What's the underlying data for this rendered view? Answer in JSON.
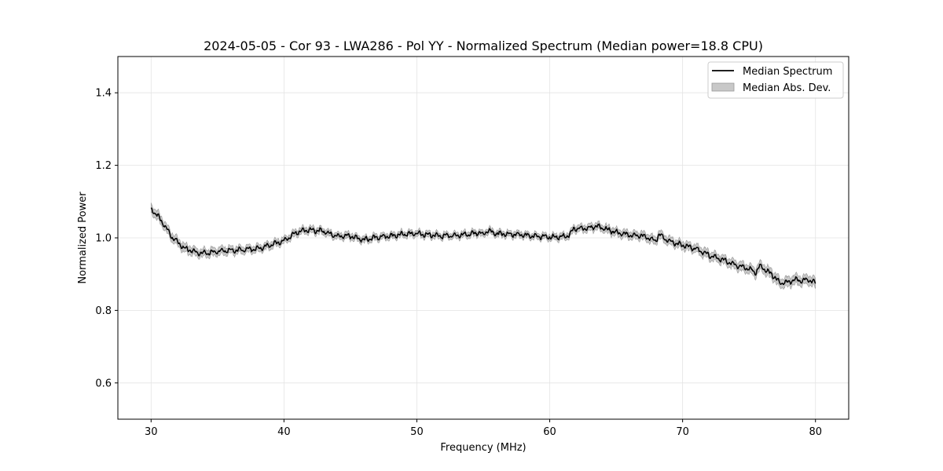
{
  "chart_data": {
    "type": "line",
    "title": "2024-05-05 - Cor 93 - LWA286 - Pol YY - Normalized Spectrum (Median power=18.8 CPU)",
    "xlabel": "Frequency (MHz)",
    "ylabel": "Normalized Power",
    "xlim": [
      27.5,
      82.5
    ],
    "ylim": [
      0.5,
      1.5
    ],
    "xticks": [
      30,
      40,
      50,
      60,
      70,
      80
    ],
    "xtick_labels": [
      "30",
      "40",
      "50",
      "60",
      "70",
      "80"
    ],
    "yticks": [
      0.6,
      0.8,
      1.0,
      1.2,
      1.4
    ],
    "ytick_labels": [
      "0.6",
      "0.8",
      "1.0",
      "1.2",
      "1.4"
    ],
    "grid": true,
    "legend_position": "top-right",
    "series": [
      {
        "name": "Median Spectrum",
        "color": "#000000",
        "points": [
          [
            30.0,
            1.08
          ],
          [
            30.5,
            1.06
          ],
          [
            31.0,
            1.035
          ],
          [
            31.5,
            1.005
          ],
          [
            32.0,
            0.988
          ],
          [
            32.5,
            0.972
          ],
          [
            33.0,
            0.965
          ],
          [
            33.5,
            0.958
          ],
          [
            34.0,
            0.958
          ],
          [
            34.5,
            0.96
          ],
          [
            35.0,
            0.963
          ],
          [
            36.0,
            0.965
          ],
          [
            37.0,
            0.967
          ],
          [
            38.0,
            0.97
          ],
          [
            39.0,
            0.98
          ],
          [
            40.0,
            0.992
          ],
          [
            40.5,
            1.005
          ],
          [
            41.0,
            1.015
          ],
          [
            41.5,
            1.02
          ],
          [
            42.0,
            1.022
          ],
          [
            43.0,
            1.018
          ],
          [
            43.5,
            1.01
          ],
          [
            44.0,
            1.005
          ],
          [
            45.0,
            1.005
          ],
          [
            45.5,
            1.0
          ],
          [
            46.0,
            0.995
          ],
          [
            46.5,
            0.998
          ],
          [
            47.0,
            1.002
          ],
          [
            48.0,
            1.005
          ],
          [
            49.0,
            1.01
          ],
          [
            50.0,
            1.012
          ],
          [
            51.0,
            1.008
          ],
          [
            52.0,
            1.005
          ],
          [
            53.0,
            1.007
          ],
          [
            54.0,
            1.01
          ],
          [
            54.7,
            1.015
          ],
          [
            55.0,
            1.008
          ],
          [
            55.3,
            1.02
          ],
          [
            56.0,
            1.012
          ],
          [
            57.0,
            1.01
          ],
          [
            58.0,
            1.008
          ],
          [
            59.0,
            1.005
          ],
          [
            60.0,
            1.002
          ],
          [
            61.0,
            1.003
          ],
          [
            61.5,
            1.008
          ],
          [
            61.8,
            1.025
          ],
          [
            62.5,
            1.026
          ],
          [
            63.0,
            1.027
          ],
          [
            63.5,
            1.032
          ],
          [
            64.0,
            1.027
          ],
          [
            65.0,
            1.015
          ],
          [
            66.0,
            1.008
          ],
          [
            67.0,
            1.005
          ],
          [
            68.0,
            0.992
          ],
          [
            68.2,
            1.01
          ],
          [
            69.0,
            0.99
          ],
          [
            70.0,
            0.98
          ],
          [
            71.0,
            0.97
          ],
          [
            72.0,
            0.952
          ],
          [
            73.0,
            0.94
          ],
          [
            74.0,
            0.925
          ],
          [
            75.0,
            0.915
          ],
          [
            75.5,
            0.905
          ],
          [
            75.8,
            0.922
          ],
          [
            76.5,
            0.905
          ],
          [
            77.0,
            0.89
          ],
          [
            77.3,
            0.875
          ],
          [
            78.0,
            0.878
          ],
          [
            78.5,
            0.885
          ],
          [
            79.0,
            0.882
          ],
          [
            79.5,
            0.885
          ],
          [
            80.0,
            0.875
          ]
        ]
      },
      {
        "name": "Median Abs. Dev.",
        "type": "band",
        "color": "#c8c8c8",
        "edge_color": "#999999",
        "half_width": [
          [
            30.0,
            0.012
          ],
          [
            40.0,
            0.009
          ],
          [
            50.0,
            0.008
          ],
          [
            60.0,
            0.008
          ],
          [
            65.0,
            0.01
          ],
          [
            70.0,
            0.011
          ],
          [
            75.0,
            0.012
          ],
          [
            80.0,
            0.013
          ]
        ]
      }
    ]
  }
}
